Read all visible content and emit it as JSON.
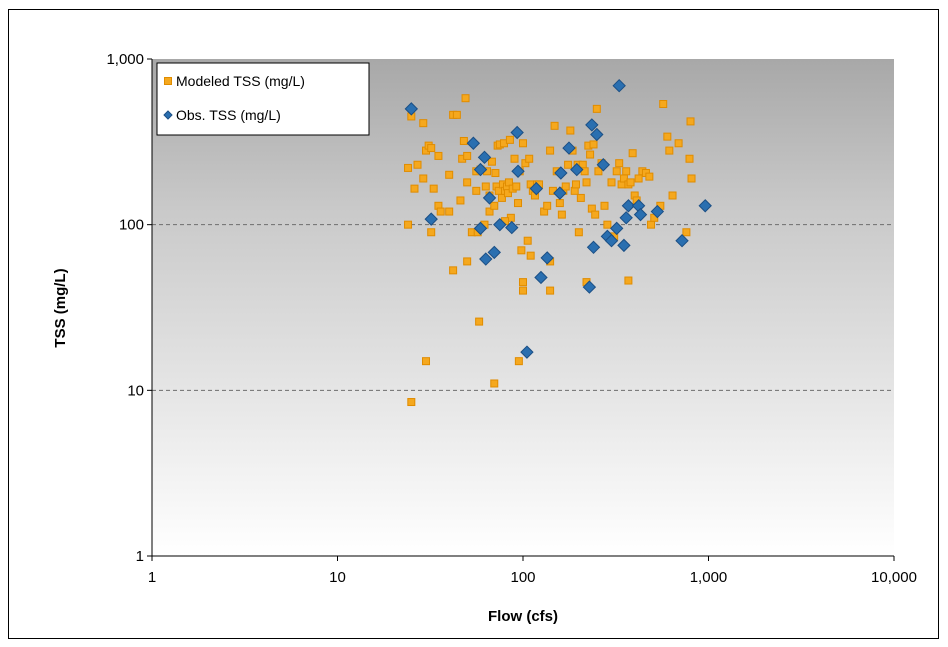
{
  "chart_data": {
    "type": "scatter",
    "title": "",
    "xlabel": "Flow (cfs)",
    "ylabel": "TSS (mg/L)",
    "x_scale": "log",
    "y_scale": "log",
    "xlim": [
      1,
      10000
    ],
    "ylim": [
      1,
      1000
    ],
    "x_ticks": [
      "1",
      "10",
      "100",
      "1,000",
      "10,000"
    ],
    "y_ticks": [
      "1",
      "10",
      "100",
      "1,000"
    ],
    "grid": "horizontal dashed at 10 and 100",
    "legend_position": "top-left",
    "colors": {
      "modeled": "#f5a81e",
      "modeled_edge": "#e08c00",
      "observed": "#2a6fb0",
      "observed_edge": "#1b4f85",
      "bg_top": "#a8a8a8",
      "bg_bottom": "#ffffff"
    },
    "series": [
      {
        "name": "Modeled TSS (mg/L)",
        "marker": "square",
        "points": [
          [
            24,
            220
          ],
          [
            25,
            450
          ],
          [
            26,
            165
          ],
          [
            27,
            230
          ],
          [
            29,
            190
          ],
          [
            29,
            410
          ],
          [
            30,
            280
          ],
          [
            31,
            300
          ],
          [
            32,
            290
          ],
          [
            33,
            165
          ],
          [
            35,
            260
          ],
          [
            35,
            130
          ],
          [
            36,
            120
          ],
          [
            40,
            120
          ],
          [
            40,
            200
          ],
          [
            42,
            460
          ],
          [
            44,
            460
          ],
          [
            46,
            140
          ],
          [
            47,
            250
          ],
          [
            48,
            320
          ],
          [
            49,
            580
          ],
          [
            50,
            180
          ],
          [
            50,
            260
          ],
          [
            53,
            90
          ],
          [
            56,
            210
          ],
          [
            56,
            160
          ],
          [
            57,
            90
          ],
          [
            59,
            215
          ],
          [
            62,
            100
          ],
          [
            63,
            170
          ],
          [
            64,
            210
          ],
          [
            66,
            150
          ],
          [
            66,
            120
          ],
          [
            68,
            240
          ],
          [
            70,
            130
          ],
          [
            71,
            205
          ],
          [
            72,
            170
          ],
          [
            73,
            300
          ],
          [
            74,
            160
          ],
          [
            75,
            305
          ],
          [
            77,
            145
          ],
          [
            78,
            175
          ],
          [
            79,
            310
          ],
          [
            80,
            160
          ],
          [
            82,
            170
          ],
          [
            83,
            155
          ],
          [
            84,
            180
          ],
          [
            85,
            325
          ],
          [
            86,
            110
          ],
          [
            88,
            165
          ],
          [
            90,
            250
          ],
          [
            92,
            170
          ],
          [
            94,
            135
          ],
          [
            96,
            210
          ],
          [
            98,
            70
          ],
          [
            100,
            310
          ],
          [
            103,
            235
          ],
          [
            106,
            80
          ],
          [
            108,
            250
          ],
          [
            110,
            175
          ],
          [
            113,
            160
          ],
          [
            116,
            150
          ],
          [
            119,
            175
          ],
          [
            122,
            175
          ],
          [
            130,
            120
          ],
          [
            135,
            130
          ],
          [
            140,
            280
          ],
          [
            145,
            160
          ],
          [
            148,
            395
          ],
          [
            152,
            210
          ],
          [
            158,
            135
          ],
          [
            162,
            115
          ],
          [
            165,
            160
          ],
          [
            170,
            170
          ],
          [
            175,
            230
          ],
          [
            180,
            370
          ],
          [
            185,
            280
          ],
          [
            190,
            160
          ],
          [
            193,
            175
          ],
          [
            197,
            230
          ],
          [
            200,
            90
          ],
          [
            205,
            145
          ],
          [
            210,
            230
          ],
          [
            215,
            210
          ],
          [
            220,
            180
          ],
          [
            225,
            300
          ],
          [
            230,
            265
          ],
          [
            235,
            125
          ],
          [
            240,
            305
          ],
          [
            245,
            115
          ],
          [
            250,
            500
          ],
          [
            255,
            210
          ],
          [
            265,
            235
          ],
          [
            275,
            130
          ],
          [
            285,
            100
          ],
          [
            300,
            180
          ],
          [
            310,
            85
          ],
          [
            320,
            210
          ],
          [
            330,
            235
          ],
          [
            340,
            175
          ],
          [
            350,
            190
          ],
          [
            360,
            210
          ],
          [
            370,
            175
          ],
          [
            380,
            180
          ],
          [
            390,
            270
          ],
          [
            400,
            150
          ],
          [
            410,
            140
          ],
          [
            420,
            190
          ],
          [
            440,
            210
          ],
          [
            460,
            205
          ],
          [
            480,
            195
          ],
          [
            490,
            100
          ],
          [
            510,
            110
          ],
          [
            550,
            130
          ],
          [
            570,
            535
          ],
          [
            600,
            340
          ],
          [
            615,
            280
          ],
          [
            640,
            150
          ],
          [
            690,
            310
          ],
          [
            760,
            90
          ],
          [
            790,
            250
          ],
          [
            800,
            420
          ],
          [
            810,
            190
          ],
          [
            80,
            105
          ],
          [
            100,
            40
          ],
          [
            100,
            45
          ],
          [
            95,
            15
          ],
          [
            110,
            65
          ],
          [
            140,
            40
          ],
          [
            140,
            60
          ],
          [
            30,
            15
          ],
          [
            70,
            11
          ],
          [
            58,
            26
          ],
          [
            24,
            100
          ],
          [
            32,
            90
          ],
          [
            42,
            53
          ],
          [
            50,
            60
          ],
          [
            25,
            8.5
          ],
          [
            220,
            45
          ],
          [
            370,
            46
          ]
        ]
      },
      {
        "name": "Obs. TSS (mg/L)",
        "marker": "diamond",
        "points": [
          [
            25,
            500
          ],
          [
            32,
            108
          ],
          [
            54,
            310
          ],
          [
            59,
            95
          ],
          [
            59,
            215
          ],
          [
            62,
            255
          ],
          [
            63,
            62
          ],
          [
            66,
            145
          ],
          [
            70,
            68
          ],
          [
            75,
            100
          ],
          [
            87,
            96
          ],
          [
            93,
            360
          ],
          [
            94,
            210
          ],
          [
            105,
            17
          ],
          [
            118,
            165
          ],
          [
            125,
            48
          ],
          [
            135,
            63
          ],
          [
            158,
            155
          ],
          [
            160,
            205
          ],
          [
            177,
            290
          ],
          [
            195,
            215
          ],
          [
            228,
            42
          ],
          [
            235,
            400
          ],
          [
            240,
            73
          ],
          [
            250,
            350
          ],
          [
            271,
            230
          ],
          [
            285,
            85
          ],
          [
            300,
            80
          ],
          [
            320,
            95
          ],
          [
            330,
            690
          ],
          [
            350,
            75
          ],
          [
            360,
            110
          ],
          [
            370,
            130
          ],
          [
            420,
            130
          ],
          [
            430,
            115
          ],
          [
            530,
            120
          ],
          [
            720,
            80
          ],
          [
            960,
            130
          ]
        ]
      }
    ]
  }
}
